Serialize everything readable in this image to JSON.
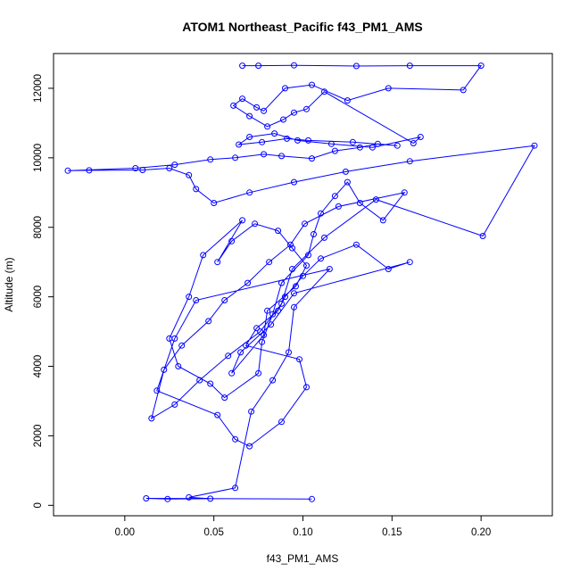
{
  "chart_data": {
    "type": "line",
    "title": "ATOM1 Northeast_Pacific f43_PM1_AMS",
    "xlabel": "f43_PM1_AMS",
    "ylabel": "Altitude (m)",
    "xlim": [
      -0.04,
      0.24
    ],
    "ylim": [
      -300,
      13000
    ],
    "x_ticks": [
      "0.00",
      "0.05",
      "0.10",
      "0.15",
      "0.20"
    ],
    "y_ticks": [
      "0",
      "2000",
      "4000",
      "6000",
      "8000",
      "10000",
      "12000"
    ],
    "grid": false,
    "series_color": "#0000ff",
    "marker": "open-circle",
    "series": [
      {
        "x": [
          0.105,
          0.012,
          0.024,
          0.048,
          0.036,
          0.062,
          0.071,
          0.083,
          0.092,
          0.095,
          0.115,
          0.04,
          0.028,
          0.018,
          0.052,
          0.062,
          0.07,
          0.088,
          0.102,
          0.098,
          0.068,
          0.074,
          0.086,
          0.09,
          0.1,
          0.11,
          0.13,
          0.148,
          0.16,
          0.095,
          0.082,
          0.065,
          0.06,
          0.078,
          0.08,
          0.096,
          0.102,
          0.094,
          0.086,
          0.073,
          0.06,
          0.052,
          0.066,
          0.044,
          0.036,
          0.025,
          0.03,
          0.048,
          0.056,
          0.075,
          0.077,
          0.083,
          0.088,
          0.103,
          0.106,
          0.11,
          0.118,
          0.125,
          0.132,
          0.145,
          0.157,
          0.12,
          0.101,
          0.093,
          0.081,
          0.069,
          0.056,
          0.047,
          0.032,
          0.022,
          0.015,
          0.028,
          0.042,
          0.058,
          0.076,
          0.088,
          0.094,
          0.112,
          0.141,
          0.201,
          0.23,
          0.16,
          0.124,
          0.095,
          0.07,
          0.05,
          0.04,
          0.036,
          0.025,
          0.01,
          -0.02,
          -0.032,
          0.006,
          0.028,
          0.048,
          0.062,
          0.078,
          0.088,
          0.105,
          0.118,
          0.132,
          0.142,
          0.153,
          0.128,
          0.103,
          0.091,
          0.077,
          0.064,
          0.07,
          0.084,
          0.097,
          0.116,
          0.139,
          0.166,
          0.162,
          0.112,
          0.102,
          0.095,
          0.089,
          0.08,
          0.07,
          0.061,
          0.066,
          0.074,
          0.078,
          0.09,
          0.105,
          0.125,
          0.148,
          0.19,
          0.2,
          0.16,
          0.13,
          0.095,
          0.075,
          0.066
        ],
        "y": [
          180,
          200,
          180,
          190,
          230,
          500,
          2700,
          3600,
          4400,
          5700,
          6800,
          5900,
          4800,
          3300,
          2600,
          1900,
          1700,
          2400,
          3400,
          4200,
          4600,
          5100,
          5600,
          6000,
          6600,
          7100,
          7500,
          6800,
          7000,
          6100,
          5200,
          4400,
          3800,
          4900,
          5600,
          6300,
          6900,
          7400,
          7900,
          8100,
          7600,
          7000,
          8200,
          7200,
          6000,
          4800,
          4000,
          3500,
          3100,
          3800,
          4700,
          5500,
          6400,
          7200,
          7800,
          8400,
          8900,
          9300,
          8700,
          8200,
          9000,
          8600,
          8100,
          7500,
          7000,
          6400,
          5900,
          5300,
          4600,
          3900,
          2500,
          2900,
          3600,
          4300,
          5000,
          5800,
          6800,
          7700,
          8800,
          7750,
          10350,
          9900,
          9600,
          9300,
          9000,
          8700,
          9100,
          9500,
          9700,
          9650,
          9640,
          9630,
          9700,
          9800,
          9950,
          10000,
          10100,
          10050,
          9980,
          10200,
          10300,
          10400,
          10350,
          10450,
          10500,
          10550,
          10450,
          10380,
          10600,
          10700,
          10500,
          10400,
          10300,
          10600,
          10420,
          11900,
          11400,
          11300,
          11100,
          10900,
          11200,
          11500,
          11700,
          11450,
          11350,
          12000,
          12100,
          11650,
          12000,
          11950,
          12650,
          12650,
          12640,
          12660,
          12650,
          12650
        ]
      }
    ]
  }
}
